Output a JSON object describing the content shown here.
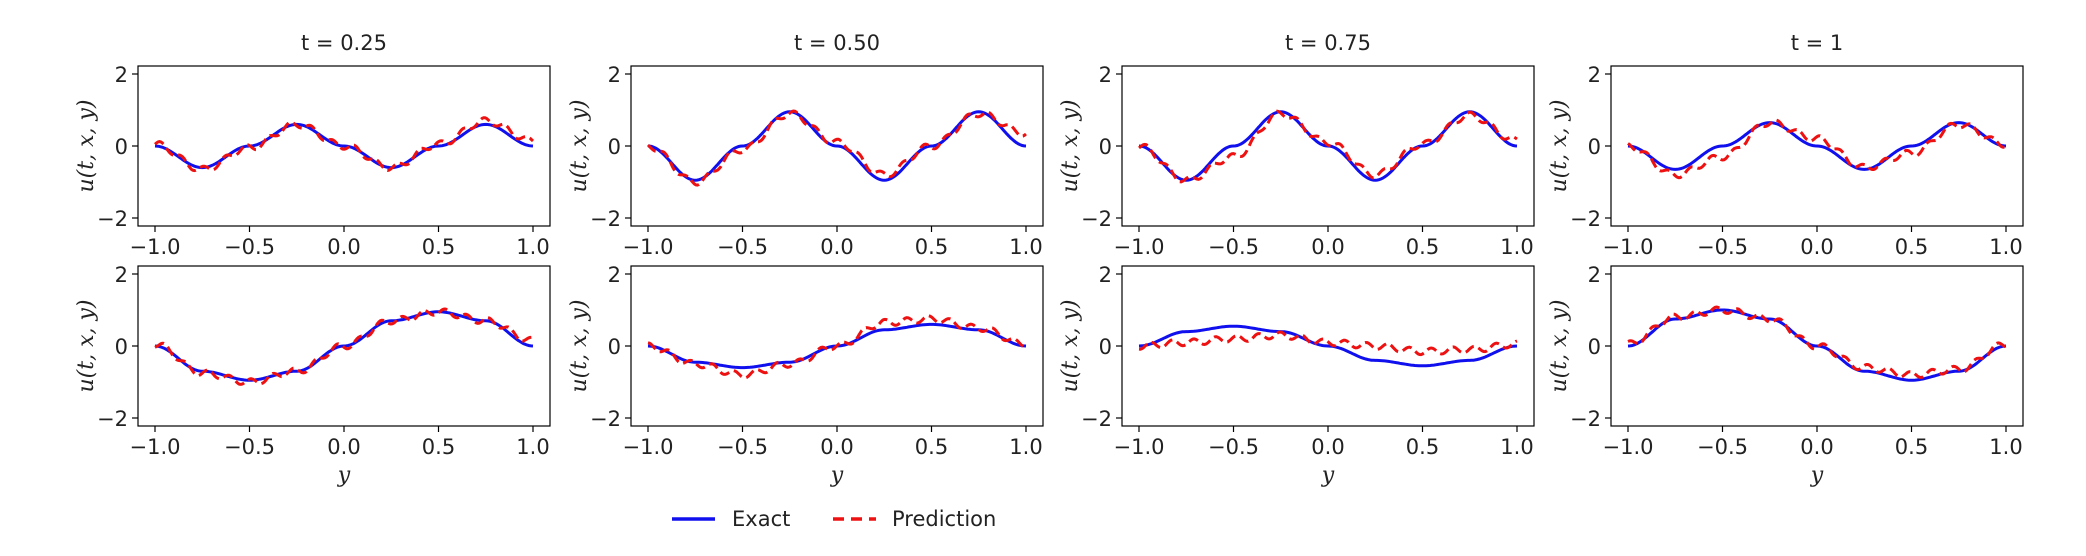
{
  "colors": {
    "exact": "#1010ee",
    "prediction": "#ee1111"
  },
  "legend": {
    "exact_label": "Exact",
    "prediction_label": "Prediction",
    "placement": "bottom-center"
  },
  "chart_data": [
    {
      "type": "line",
      "title": "t = 0.25",
      "xlabel": "",
      "ylabel": "u(t, x, y)",
      "xlim": [
        -1.0,
        1.0
      ],
      "ylim": [
        -2,
        2
      ],
      "xticks": [
        "-1.0",
        "-0.5",
        "0.0",
        "0.5",
        "1.0"
      ],
      "yticks": [
        "2",
        "0",
        "-2"
      ],
      "series": [
        {
          "name": "Exact",
          "x": [
            -1.0,
            -0.75,
            -0.5,
            -0.25,
            0.0,
            0.25,
            0.5,
            0.75,
            1.0
          ],
          "y": [
            0.0,
            -0.6,
            0.0,
            0.6,
            0.0,
            -0.6,
            0.0,
            0.6,
            0.0
          ]
        },
        {
          "name": "Prediction",
          "x": [
            -1.0,
            -0.75,
            -0.5,
            -0.25,
            0.0,
            0.25,
            0.5,
            0.75,
            1.0
          ],
          "y": [
            0.05,
            -0.65,
            -0.05,
            0.6,
            0.0,
            -0.6,
            0.05,
            0.7,
            0.15
          ]
        }
      ]
    },
    {
      "type": "line",
      "title": "t = 0.50",
      "xlabel": "",
      "ylabel": "u(t, x, y)",
      "xlim": [
        -1.0,
        1.0
      ],
      "ylim": [
        -2,
        2
      ],
      "xticks": [
        "-1.0",
        "-0.5",
        "0.0",
        "0.5",
        "1.0"
      ],
      "yticks": [
        "2",
        "0",
        "-2"
      ],
      "series": [
        {
          "name": "Exact",
          "x": [
            -1.0,
            -0.75,
            -0.5,
            -0.25,
            0.0,
            0.25,
            0.5,
            0.75,
            1.0
          ],
          "y": [
            0.0,
            -0.95,
            0.0,
            0.95,
            0.0,
            -0.95,
            0.0,
            0.95,
            0.0
          ]
        },
        {
          "name": "Prediction",
          "x": [
            -1.0,
            -0.75,
            -0.5,
            -0.25,
            0.0,
            0.25,
            0.5,
            0.75,
            1.0
          ],
          "y": [
            0.0,
            -1.0,
            -0.1,
            0.9,
            0.1,
            -0.8,
            0.0,
            0.9,
            0.35
          ]
        }
      ]
    },
    {
      "type": "line",
      "title": "t = 0.75",
      "xlabel": "",
      "ylabel": "u(t, x, y)",
      "xlim": [
        -1.0,
        1.0
      ],
      "ylim": [
        -2,
        2
      ],
      "xticks": [
        "-1.0",
        "-0.5",
        "0.0",
        "0.5",
        "1.0"
      ],
      "yticks": [
        "2",
        "0",
        "-2"
      ],
      "series": [
        {
          "name": "Exact",
          "x": [
            -1.0,
            -0.75,
            -0.5,
            -0.25,
            0.0,
            0.25,
            0.5,
            0.75,
            1.0
          ],
          "y": [
            0.0,
            -0.95,
            0.0,
            0.95,
            0.0,
            -0.95,
            0.0,
            0.95,
            0.0
          ]
        },
        {
          "name": "Prediction",
          "x": [
            -1.0,
            -0.75,
            -0.5,
            -0.25,
            0.0,
            0.25,
            0.5,
            0.75,
            1.0
          ],
          "y": [
            0.0,
            -0.95,
            -0.3,
            0.9,
            0.1,
            -0.8,
            0.05,
            0.85,
            0.15
          ]
        }
      ]
    },
    {
      "type": "line",
      "title": "t = 1",
      "xlabel": "",
      "ylabel": "u(t, x, y)",
      "xlim": [
        -1.0,
        1.0
      ],
      "ylim": [
        -2,
        2
      ],
      "xticks": [
        "-1.0",
        "-0.5",
        "0.0",
        "0.5",
        "1.0"
      ],
      "yticks": [
        "2",
        "0",
        "-2"
      ],
      "series": [
        {
          "name": "Exact",
          "x": [
            -1.0,
            -0.75,
            -0.5,
            -0.25,
            0.0,
            0.25,
            0.5,
            0.75,
            1.0
          ],
          "y": [
            0.0,
            -0.65,
            0.0,
            0.65,
            0.0,
            -0.65,
            0.0,
            0.65,
            0.0
          ]
        },
        {
          "name": "Prediction",
          "x": [
            -1.0,
            -0.75,
            -0.5,
            -0.25,
            0.0,
            0.25,
            0.5,
            0.75,
            1.0
          ],
          "y": [
            0.0,
            -0.8,
            -0.3,
            0.65,
            0.2,
            -0.6,
            -0.2,
            0.6,
            0.05
          ]
        }
      ]
    },
    {
      "type": "line",
      "title": "",
      "xlabel": "y",
      "ylabel": "u(t, x, y)",
      "xlim": [
        -1.0,
        1.0
      ],
      "ylim": [
        -2,
        2
      ],
      "xticks": [
        "-1.0",
        "-0.5",
        "0.0",
        "0.5",
        "1.0"
      ],
      "yticks": [
        "2",
        "0",
        "-2"
      ],
      "series": [
        {
          "name": "Exact",
          "x": [
            -1.0,
            -0.75,
            -0.5,
            -0.25,
            0.0,
            0.25,
            0.5,
            0.75,
            1.0
          ],
          "y": [
            0.0,
            -0.7,
            -0.95,
            -0.7,
            0.0,
            0.7,
            0.95,
            0.7,
            0.0
          ]
        },
        {
          "name": "Prediction",
          "x": [
            -1.0,
            -0.75,
            -0.5,
            -0.25,
            0.0,
            0.25,
            0.5,
            0.75,
            1.0
          ],
          "y": [
            0.05,
            -0.75,
            -1.0,
            -0.7,
            0.0,
            0.7,
            0.95,
            0.7,
            0.15
          ]
        }
      ]
    },
    {
      "type": "line",
      "title": "",
      "xlabel": "y",
      "ylabel": "u(t, x, y)",
      "xlim": [
        -1.0,
        1.0
      ],
      "ylim": [
        -2,
        2
      ],
      "xticks": [
        "-1.0",
        "-0.5",
        "0.0",
        "0.5",
        "1.0"
      ],
      "yticks": [
        "2",
        "0",
        "-2"
      ],
      "series": [
        {
          "name": "Exact",
          "x": [
            -1.0,
            -0.75,
            -0.5,
            -0.25,
            0.0,
            0.25,
            0.5,
            0.75,
            1.0
          ],
          "y": [
            0.0,
            -0.45,
            -0.6,
            -0.45,
            0.0,
            0.45,
            0.6,
            0.45,
            0.0
          ]
        },
        {
          "name": "Prediction",
          "x": [
            -1.0,
            -0.75,
            -0.5,
            -0.25,
            0.0,
            0.25,
            0.5,
            0.75,
            1.0
          ],
          "y": [
            0.0,
            -0.5,
            -0.8,
            -0.5,
            0.0,
            0.65,
            0.75,
            0.5,
            0.05
          ]
        }
      ]
    },
    {
      "type": "line",
      "title": "",
      "xlabel": "y",
      "ylabel": "u(t, x, y)",
      "xlim": [
        -1.0,
        1.0
      ],
      "ylim": [
        -2,
        2
      ],
      "xticks": [
        "-1.0",
        "-0.5",
        "0.0",
        "0.5",
        "1.0"
      ],
      "yticks": [
        "2",
        "0",
        "-2"
      ],
      "series": [
        {
          "name": "Exact",
          "x": [
            -1.0,
            -0.75,
            -0.5,
            -0.25,
            0.0,
            0.25,
            0.5,
            0.75,
            1.0
          ],
          "y": [
            0.0,
            0.4,
            0.55,
            0.4,
            0.0,
            -0.4,
            -0.55,
            -0.4,
            0.0
          ]
        },
        {
          "name": "Prediction",
          "x": [
            -1.0,
            -0.75,
            -0.5,
            -0.25,
            0.0,
            0.25,
            0.5,
            0.75,
            1.0
          ],
          "y": [
            0.0,
            0.1,
            0.2,
            0.3,
            0.1,
            0.0,
            -0.15,
            -0.1,
            0.05
          ]
        }
      ]
    },
    {
      "type": "line",
      "title": "",
      "xlabel": "y",
      "ylabel": "u(t, x, y)",
      "xlim": [
        -1.0,
        1.0
      ],
      "ylim": [
        -2,
        2
      ],
      "xticks": [
        "-1.0",
        "-0.5",
        "0.0",
        "0.5",
        "1.0"
      ],
      "yticks": [
        "2",
        "0",
        "-2"
      ],
      "series": [
        {
          "name": "Exact",
          "x": [
            -1.0,
            -0.75,
            -0.5,
            -0.25,
            0.0,
            0.25,
            0.5,
            0.75,
            1.0
          ],
          "y": [
            0.0,
            0.75,
            1.0,
            0.75,
            0.0,
            -0.7,
            -0.95,
            -0.7,
            0.0
          ]
        },
        {
          "name": "Prediction",
          "x": [
            -1.0,
            -0.75,
            -0.5,
            -0.25,
            0.0,
            0.25,
            0.5,
            0.75,
            1.0
          ],
          "y": [
            0.05,
            0.8,
            1.0,
            0.75,
            0.0,
            -0.6,
            -0.8,
            -0.65,
            0.05
          ]
        }
      ]
    }
  ]
}
